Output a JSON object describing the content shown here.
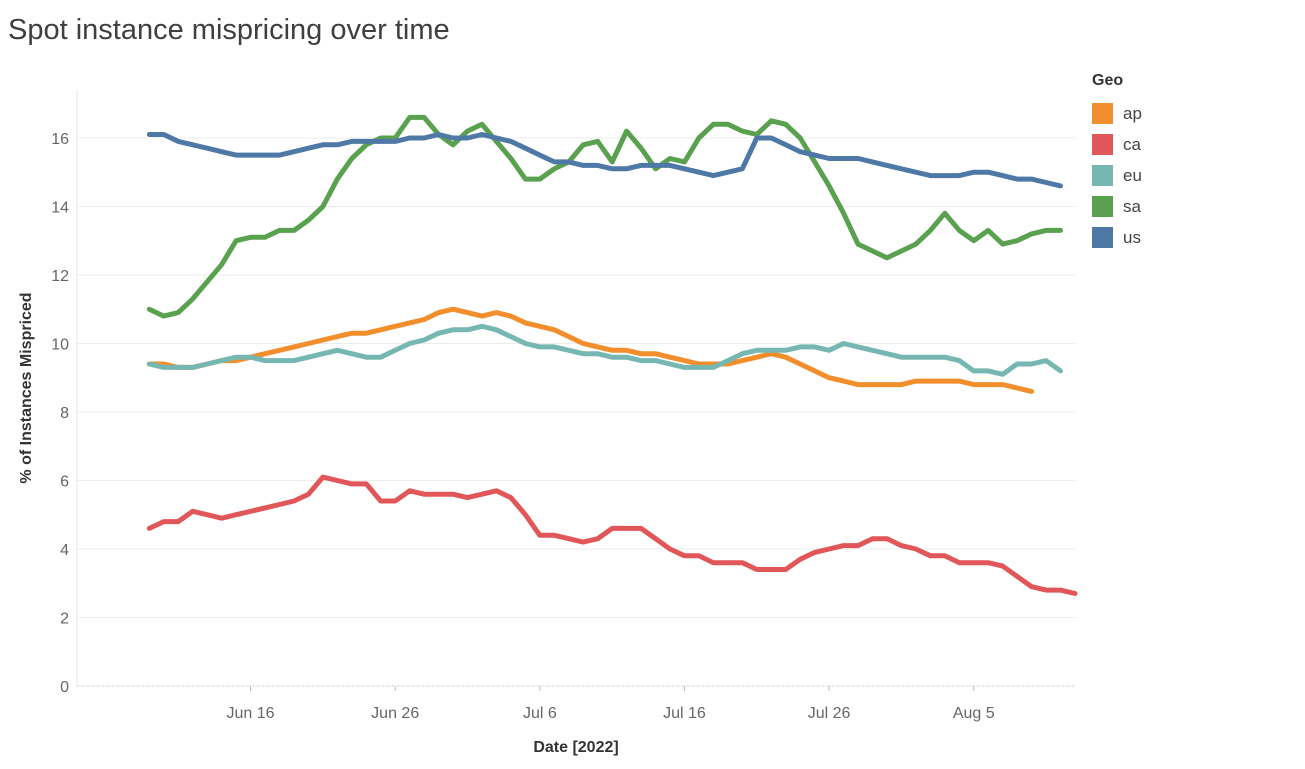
{
  "title": "Spot instance mispricing over time",
  "chart_data": {
    "type": "line",
    "title": "Spot instance mispricing over time",
    "xlabel": "Date [2022]",
    "ylabel": "% of Instances Mispriced",
    "x_ticks": [
      "Jun 16",
      "Jun 26",
      "Jul 6",
      "Jul 16",
      "Jul 26",
      "Aug 5"
    ],
    "x_tick_days": [
      16,
      26,
      36,
      46,
      56,
      66
    ],
    "x_day_note": "day index = day of year offset where Jun 1 = 1 (Jul 6 = 36)",
    "xlim": [
      4,
      73
    ],
    "ylim": [
      0,
      17.4
    ],
    "y_ticks": [
      0,
      2,
      4,
      6,
      8,
      10,
      12,
      14,
      16
    ],
    "gridlines": true,
    "legend_title": "Geo",
    "legend_position": "right",
    "series": [
      {
        "name": "ap",
        "color": "#F28E2B",
        "points": [
          [
            9,
            9.4
          ],
          [
            10,
            9.4
          ],
          [
            11,
            9.3
          ],
          [
            12,
            9.3
          ],
          [
            13,
            9.4
          ],
          [
            14,
            9.5
          ],
          [
            15,
            9.5
          ],
          [
            16,
            9.6
          ],
          [
            17,
            9.7
          ],
          [
            18,
            9.8
          ],
          [
            19,
            9.9
          ],
          [
            20,
            10.0
          ],
          [
            21,
            10.1
          ],
          [
            22,
            10.2
          ],
          [
            23,
            10.3
          ],
          [
            24,
            10.3
          ],
          [
            25,
            10.4
          ],
          [
            26,
            10.5
          ],
          [
            27,
            10.6
          ],
          [
            28,
            10.7
          ],
          [
            29,
            10.9
          ],
          [
            30,
            11.0
          ],
          [
            31,
            10.9
          ],
          [
            32,
            10.8
          ],
          [
            33,
            10.9
          ],
          [
            34,
            10.8
          ],
          [
            35,
            10.6
          ],
          [
            36,
            10.5
          ],
          [
            37,
            10.4
          ],
          [
            38,
            10.2
          ],
          [
            39,
            10.0
          ],
          [
            40,
            9.9
          ],
          [
            41,
            9.8
          ],
          [
            42,
            9.8
          ],
          [
            43,
            9.7
          ],
          [
            44,
            9.7
          ],
          [
            45,
            9.6
          ],
          [
            46,
            9.5
          ],
          [
            47,
            9.4
          ],
          [
            48,
            9.4
          ],
          [
            49,
            9.4
          ],
          [
            50,
            9.5
          ],
          [
            51,
            9.6
          ],
          [
            52,
            9.7
          ],
          [
            53,
            9.6
          ],
          [
            54,
            9.4
          ],
          [
            55,
            9.2
          ],
          [
            56,
            9.0
          ],
          [
            57,
            8.9
          ],
          [
            58,
            8.8
          ],
          [
            59,
            8.8
          ],
          [
            60,
            8.8
          ],
          [
            61,
            8.8
          ],
          [
            62,
            8.9
          ],
          [
            63,
            8.9
          ],
          [
            64,
            8.9
          ],
          [
            65,
            8.9
          ],
          [
            66,
            8.8
          ],
          [
            67,
            8.8
          ],
          [
            68,
            8.8
          ],
          [
            69,
            8.7
          ],
          [
            70,
            8.6
          ]
        ]
      },
      {
        "name": "ca",
        "color": "#E15759",
        "points": [
          [
            9,
            4.6
          ],
          [
            10,
            4.8
          ],
          [
            11,
            4.8
          ],
          [
            12,
            5.1
          ],
          [
            13,
            5.0
          ],
          [
            14,
            4.9
          ],
          [
            15,
            5.0
          ],
          [
            16,
            5.1
          ],
          [
            17,
            5.2
          ],
          [
            18,
            5.3
          ],
          [
            19,
            5.4
          ],
          [
            20,
            5.6
          ],
          [
            21,
            6.1
          ],
          [
            22,
            6.0
          ],
          [
            23,
            5.9
          ],
          [
            24,
            5.9
          ],
          [
            25,
            5.4
          ],
          [
            26,
            5.4
          ],
          [
            27,
            5.7
          ],
          [
            28,
            5.6
          ],
          [
            29,
            5.6
          ],
          [
            30,
            5.6
          ],
          [
            31,
            5.5
          ],
          [
            32,
            5.6
          ],
          [
            33,
            5.7
          ],
          [
            34,
            5.5
          ],
          [
            35,
            5.0
          ],
          [
            36,
            4.4
          ],
          [
            37,
            4.4
          ],
          [
            38,
            4.3
          ],
          [
            39,
            4.2
          ],
          [
            40,
            4.3
          ],
          [
            41,
            4.6
          ],
          [
            42,
            4.6
          ],
          [
            43,
            4.6
          ],
          [
            44,
            4.3
          ],
          [
            45,
            4.0
          ],
          [
            46,
            3.8
          ],
          [
            47,
            3.8
          ],
          [
            48,
            3.6
          ],
          [
            49,
            3.6
          ],
          [
            50,
            3.6
          ],
          [
            51,
            3.4
          ],
          [
            52,
            3.4
          ],
          [
            53,
            3.4
          ],
          [
            54,
            3.7
          ],
          [
            55,
            3.9
          ],
          [
            56,
            4.0
          ],
          [
            57,
            4.1
          ],
          [
            58,
            4.1
          ],
          [
            59,
            4.3
          ],
          [
            60,
            4.3
          ],
          [
            61,
            4.1
          ],
          [
            62,
            4.0
          ],
          [
            63,
            3.8
          ],
          [
            64,
            3.8
          ],
          [
            65,
            3.6
          ],
          [
            66,
            3.6
          ],
          [
            67,
            3.6
          ],
          [
            68,
            3.5
          ],
          [
            69,
            3.2
          ],
          [
            70,
            2.9
          ],
          [
            71,
            2.8
          ],
          [
            72,
            2.8
          ],
          [
            73,
            2.7
          ]
        ]
      },
      {
        "name": "eu",
        "color": "#76B7B2",
        "points": [
          [
            9,
            9.4
          ],
          [
            10,
            9.3
          ],
          [
            11,
            9.3
          ],
          [
            12,
            9.3
          ],
          [
            13,
            9.4
          ],
          [
            14,
            9.5
          ],
          [
            15,
            9.6
          ],
          [
            16,
            9.6
          ],
          [
            17,
            9.5
          ],
          [
            18,
            9.5
          ],
          [
            19,
            9.5
          ],
          [
            20,
            9.6
          ],
          [
            21,
            9.7
          ],
          [
            22,
            9.8
          ],
          [
            23,
            9.7
          ],
          [
            24,
            9.6
          ],
          [
            25,
            9.6
          ],
          [
            26,
            9.8
          ],
          [
            27,
            10.0
          ],
          [
            28,
            10.1
          ],
          [
            29,
            10.3
          ],
          [
            30,
            10.4
          ],
          [
            31,
            10.4
          ],
          [
            32,
            10.5
          ],
          [
            33,
            10.4
          ],
          [
            34,
            10.2
          ],
          [
            35,
            10.0
          ],
          [
            36,
            9.9
          ],
          [
            37,
            9.9
          ],
          [
            38,
            9.8
          ],
          [
            39,
            9.7
          ],
          [
            40,
            9.7
          ],
          [
            41,
            9.6
          ],
          [
            42,
            9.6
          ],
          [
            43,
            9.5
          ],
          [
            44,
            9.5
          ],
          [
            45,
            9.4
          ],
          [
            46,
            9.3
          ],
          [
            47,
            9.3
          ],
          [
            48,
            9.3
          ],
          [
            49,
            9.5
          ],
          [
            50,
            9.7
          ],
          [
            51,
            9.8
          ],
          [
            52,
            9.8
          ],
          [
            53,
            9.8
          ],
          [
            54,
            9.9
          ],
          [
            55,
            9.9
          ],
          [
            56,
            9.8
          ],
          [
            57,
            10.0
          ],
          [
            58,
            9.9
          ],
          [
            59,
            9.8
          ],
          [
            60,
            9.7
          ],
          [
            61,
            9.6
          ],
          [
            62,
            9.6
          ],
          [
            63,
            9.6
          ],
          [
            64,
            9.6
          ],
          [
            65,
            9.5
          ],
          [
            66,
            9.2
          ],
          [
            67,
            9.2
          ],
          [
            68,
            9.1
          ],
          [
            69,
            9.4
          ],
          [
            70,
            9.4
          ],
          [
            71,
            9.5
          ],
          [
            72,
            9.2
          ]
        ]
      },
      {
        "name": "sa",
        "color": "#59A14F",
        "points": [
          [
            9,
            11.0
          ],
          [
            10,
            10.8
          ],
          [
            11,
            10.9
          ],
          [
            12,
            11.3
          ],
          [
            13,
            11.8
          ],
          [
            14,
            12.3
          ],
          [
            15,
            13.0
          ],
          [
            16,
            13.1
          ],
          [
            17,
            13.1
          ],
          [
            18,
            13.3
          ],
          [
            19,
            13.3
          ],
          [
            20,
            13.6
          ],
          [
            21,
            14.0
          ],
          [
            22,
            14.8
          ],
          [
            23,
            15.4
          ],
          [
            24,
            15.8
          ],
          [
            25,
            16.0
          ],
          [
            26,
            16.0
          ],
          [
            27,
            16.6
          ],
          [
            28,
            16.6
          ],
          [
            29,
            16.1
          ],
          [
            30,
            15.8
          ],
          [
            31,
            16.2
          ],
          [
            32,
            16.4
          ],
          [
            33,
            15.9
          ],
          [
            34,
            15.4
          ],
          [
            35,
            14.8
          ],
          [
            36,
            14.8
          ],
          [
            37,
            15.1
          ],
          [
            38,
            15.3
          ],
          [
            39,
            15.8
          ],
          [
            40,
            15.9
          ],
          [
            41,
            15.3
          ],
          [
            42,
            16.2
          ],
          [
            43,
            15.7
          ],
          [
            44,
            15.1
          ],
          [
            45,
            15.4
          ],
          [
            46,
            15.3
          ],
          [
            47,
            16.0
          ],
          [
            48,
            16.4
          ],
          [
            49,
            16.4
          ],
          [
            50,
            16.2
          ],
          [
            51,
            16.1
          ],
          [
            52,
            16.5
          ],
          [
            53,
            16.4
          ],
          [
            54,
            16.0
          ],
          [
            55,
            15.3
          ],
          [
            56,
            14.6
          ],
          [
            57,
            13.8
          ],
          [
            58,
            12.9
          ],
          [
            59,
            12.7
          ],
          [
            60,
            12.5
          ],
          [
            61,
            12.7
          ],
          [
            62,
            12.9
          ],
          [
            63,
            13.3
          ],
          [
            64,
            13.8
          ],
          [
            65,
            13.3
          ],
          [
            66,
            13.0
          ],
          [
            67,
            13.3
          ],
          [
            68,
            12.9
          ],
          [
            69,
            13.0
          ],
          [
            70,
            13.2
          ],
          [
            71,
            13.3
          ],
          [
            72,
            13.3
          ]
        ]
      },
      {
        "name": "us",
        "color": "#4E79A7",
        "points": [
          [
            9,
            16.1
          ],
          [
            10,
            16.1
          ],
          [
            11,
            15.9
          ],
          [
            12,
            15.8
          ],
          [
            13,
            15.7
          ],
          [
            14,
            15.6
          ],
          [
            15,
            15.5
          ],
          [
            16,
            15.5
          ],
          [
            17,
            15.5
          ],
          [
            18,
            15.5
          ],
          [
            19,
            15.6
          ],
          [
            20,
            15.7
          ],
          [
            21,
            15.8
          ],
          [
            22,
            15.8
          ],
          [
            23,
            15.9
          ],
          [
            24,
            15.9
          ],
          [
            25,
            15.9
          ],
          [
            26,
            15.9
          ],
          [
            27,
            16.0
          ],
          [
            28,
            16.0
          ],
          [
            29,
            16.1
          ],
          [
            30,
            16.0
          ],
          [
            31,
            16.0
          ],
          [
            32,
            16.1
          ],
          [
            33,
            16.0
          ],
          [
            34,
            15.9
          ],
          [
            35,
            15.7
          ],
          [
            36,
            15.5
          ],
          [
            37,
            15.3
          ],
          [
            38,
            15.3
          ],
          [
            39,
            15.2
          ],
          [
            40,
            15.2
          ],
          [
            41,
            15.1
          ],
          [
            42,
            15.1
          ],
          [
            43,
            15.2
          ],
          [
            44,
            15.2
          ],
          [
            45,
            15.2
          ],
          [
            46,
            15.1
          ],
          [
            47,
            15.0
          ],
          [
            48,
            14.9
          ],
          [
            49,
            15.0
          ],
          [
            50,
            15.1
          ],
          [
            51,
            16.0
          ],
          [
            52,
            16.0
          ],
          [
            53,
            15.8
          ],
          [
            54,
            15.6
          ],
          [
            55,
            15.5
          ],
          [
            56,
            15.4
          ],
          [
            57,
            15.4
          ],
          [
            58,
            15.4
          ],
          [
            59,
            15.3
          ],
          [
            60,
            15.2
          ],
          [
            61,
            15.1
          ],
          [
            62,
            15.0
          ],
          [
            63,
            14.9
          ],
          [
            64,
            14.9
          ],
          [
            65,
            14.9
          ],
          [
            66,
            15.0
          ],
          [
            67,
            15.0
          ],
          [
            68,
            14.9
          ],
          [
            69,
            14.8
          ],
          [
            70,
            14.8
          ],
          [
            71,
            14.7
          ],
          [
            72,
            14.6
          ]
        ]
      }
    ]
  }
}
